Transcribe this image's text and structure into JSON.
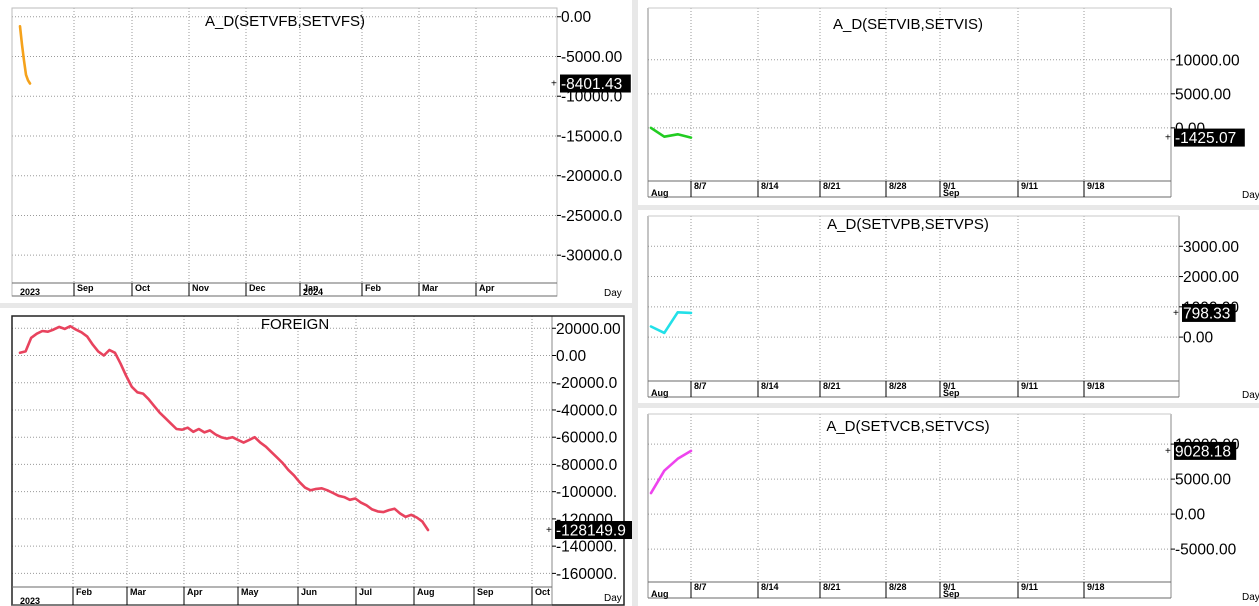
{
  "chart_data": [
    {
      "id": "setvf",
      "type": "line",
      "title": "A_D(SETVFB,SETVFS)",
      "color": "#f5a21b",
      "ylim": [
        -33500,
        1100
      ],
      "y_ticks": [
        {
          "v": 0,
          "label": "0.00"
        },
        {
          "v": -5000,
          "label": "-5000.00"
        },
        {
          "v": -10000,
          "label": "-10000.0"
        },
        {
          "v": -15000,
          "label": "-15000.0"
        },
        {
          "v": -20000,
          "label": "-20000.0"
        },
        {
          "v": -25000,
          "label": "-25000.0"
        },
        {
          "v": -30000,
          "label": "-30000.0"
        }
      ],
      "last_value": -8401.43,
      "last_value_label": "-8401.43",
      "x_ticks": [
        {
          "label": "Sep",
          "sub": ""
        },
        {
          "label": "Oct",
          "sub": ""
        },
        {
          "label": "Nov",
          "sub": ""
        },
        {
          "label": "Dec",
          "sub": ""
        },
        {
          "label": "Jan",
          "sub": "2024"
        },
        {
          "label": "Feb",
          "sub": ""
        },
        {
          "label": "Mar",
          "sub": ""
        },
        {
          "label": "Apr",
          "sub": ""
        }
      ],
      "x_first_label": "2023",
      "period_label": "Day",
      "series": [
        {
          "values": [
            -1200,
            -3500,
            -5500,
            -7300,
            -8000,
            -8401.43
          ]
        }
      ]
    },
    {
      "id": "foreign",
      "type": "line",
      "title": "FOREIGN",
      "color": "#e8435e",
      "ylim": [
        -170000,
        29000
      ],
      "y_ticks": [
        {
          "v": 20000,
          "label": "20000.00"
        },
        {
          "v": 0,
          "label": "0.00"
        },
        {
          "v": -20000,
          "label": "-20000.0"
        },
        {
          "v": -40000,
          "label": "-40000.0"
        },
        {
          "v": -60000,
          "label": "-60000.0"
        },
        {
          "v": -80000,
          "label": "-80000.0"
        },
        {
          "v": -100000,
          "label": "-100000."
        },
        {
          "v": -120000,
          "label": "-120000."
        },
        {
          "v": -140000,
          "label": "-140000."
        },
        {
          "v": -160000,
          "label": "-160000."
        }
      ],
      "last_value": -128149.9,
      "last_value_label": "-128149.9",
      "x_ticks": [
        {
          "label": "Feb",
          "sub": ""
        },
        {
          "label": "Mar",
          "sub": ""
        },
        {
          "label": "Apr",
          "sub": ""
        },
        {
          "label": "May",
          "sub": ""
        },
        {
          "label": "Jun",
          "sub": ""
        },
        {
          "label": "Jul",
          "sub": ""
        },
        {
          "label": "Aug",
          "sub": ""
        },
        {
          "label": "Sep",
          "sub": ""
        },
        {
          "label": "Oct",
          "sub": ""
        }
      ],
      "x_first_label": "2023",
      "period_label": "Day",
      "series": [
        {
          "values": [
            2000,
            3000,
            13000,
            16000,
            18000,
            17500,
            19000,
            21000,
            19500,
            21500,
            19000,
            17000,
            14000,
            8000,
            3000,
            0,
            4000,
            2000,
            -6000,
            -15000,
            -23000,
            -27000,
            -28000,
            -32000,
            -37000,
            -42000,
            -46000,
            -50000,
            -54000,
            -54500,
            -53000,
            -56000,
            -54000,
            -56500,
            -55000,
            -58000,
            -60000,
            -61000,
            -60000,
            -62000,
            -64000,
            -62000,
            -60000,
            -64000,
            -67000,
            -71000,
            -75000,
            -79000,
            -84000,
            -88000,
            -93000,
            -97000,
            -99000,
            -98000,
            -97500,
            -99000,
            -101000,
            -103000,
            -104000,
            -106000,
            -105000,
            -108000,
            -110000,
            -113000,
            -114500,
            -115000,
            -113500,
            -112500,
            -116000,
            -118500,
            -117000,
            -119000,
            -122000,
            -128149.9
          ]
        }
      ]
    },
    {
      "id": "setvi",
      "type": "line",
      "title": "A_D(SETVIB,SETVIS)",
      "color": "#22cc22",
      "ylim": [
        -7800,
        17600
      ],
      "y_ticks": [
        {
          "v": 10000,
          "label": "10000.00"
        },
        {
          "v": 5000,
          "label": "5000.00"
        },
        {
          "v": 0,
          "label": "0.00"
        }
      ],
      "last_value": -1425.07,
      "last_value_label": "-1425.07",
      "x_ticks": [
        {
          "label": "8/7",
          "sub": ""
        },
        {
          "label": "8/14",
          "sub": ""
        },
        {
          "label": "8/21",
          "sub": ""
        },
        {
          "label": "8/28",
          "sub": ""
        },
        {
          "label": "9/1",
          "sub": "Sep"
        },
        {
          "label": "9/11",
          "sub": ""
        },
        {
          "label": "9/18",
          "sub": ""
        }
      ],
      "x_first_label": "Aug",
      "period_label": "Day",
      "series": [
        {
          "values": [
            0,
            -1300,
            -950,
            -1425.07
          ]
        }
      ]
    },
    {
      "id": "setvp",
      "type": "line",
      "title": "A_D(SETVPB,SETVPS)",
      "color": "#22e0e8",
      "ylim": [
        -1450,
        4000
      ],
      "y_ticks": [
        {
          "v": 3000,
          "label": "3000.00"
        },
        {
          "v": 2000,
          "label": "2000.00"
        },
        {
          "v": 1000,
          "label": "1000.00"
        },
        {
          "v": 0,
          "label": "0.00"
        }
      ],
      "last_value": 798.33,
      "last_value_label": "798.33",
      "x_ticks": [
        {
          "label": "8/7",
          "sub": ""
        },
        {
          "label": "8/14",
          "sub": ""
        },
        {
          "label": "8/21",
          "sub": ""
        },
        {
          "label": "8/28",
          "sub": ""
        },
        {
          "label": "9/1",
          "sub": "Sep"
        },
        {
          "label": "9/11",
          "sub": ""
        },
        {
          "label": "9/18",
          "sub": ""
        }
      ],
      "x_first_label": "Aug",
      "period_label": "Day",
      "series": [
        {
          "values": [
            350,
            140,
            820,
            798.33
          ]
        }
      ]
    },
    {
      "id": "setvc",
      "type": "line",
      "title": "A_D(SETVCB,SETVCS)",
      "color": "#ee44ee",
      "ylim": [
        -9700,
        14300
      ],
      "y_ticks": [
        {
          "v": 10000,
          "label": "10000.00"
        },
        {
          "v": 5000,
          "label": "5000.00"
        },
        {
          "v": 0,
          "label": "0.00"
        },
        {
          "v": -5000,
          "label": "-5000.00"
        }
      ],
      "last_value": 9028.18,
      "last_value_label": "9028.18",
      "x_ticks": [
        {
          "label": "8/7",
          "sub": ""
        },
        {
          "label": "8/14",
          "sub": ""
        },
        {
          "label": "8/21",
          "sub": ""
        },
        {
          "label": "8/28",
          "sub": ""
        },
        {
          "label": "9/1",
          "sub": "Sep"
        },
        {
          "label": "9/11",
          "sub": ""
        },
        {
          "label": "9/18",
          "sub": ""
        }
      ],
      "x_first_label": "Aug",
      "period_label": "Day",
      "series": [
        {
          "values": [
            3000,
            6200,
            7900,
            9028.18
          ]
        }
      ]
    }
  ]
}
